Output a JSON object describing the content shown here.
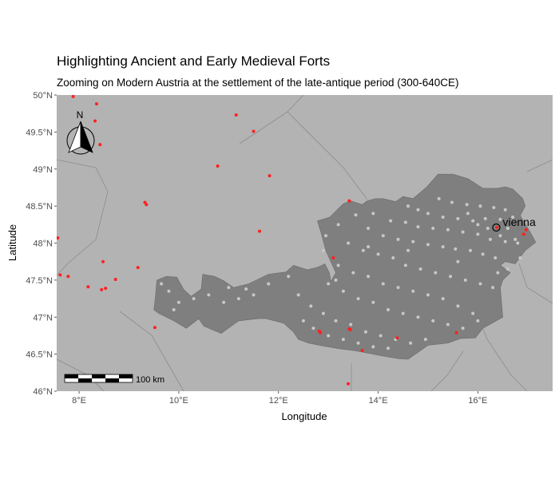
{
  "title": "Highlighting Ancient and Early Medieval Forts",
  "subtitle": "Zooming on Modern Austria at the settlement of the late-antique period (300-640CE)",
  "axes": {
    "xlabel": "Longitude",
    "ylabel": "Latitude",
    "xlim": [
      7.55,
      17.5
    ],
    "ylim": [
      46.0,
      50.0
    ],
    "x_ticks": [
      {
        "value": 8,
        "label": "8°E"
      },
      {
        "value": 10,
        "label": "10°E"
      },
      {
        "value": 12,
        "label": "12°E"
      },
      {
        "value": 14,
        "label": "14°E"
      },
      {
        "value": 16,
        "label": "16°E"
      }
    ],
    "y_ticks": [
      {
        "value": 46.0,
        "label": "46°N"
      },
      {
        "value": 46.5,
        "label": "46.5°N"
      },
      {
        "value": 47.0,
        "label": "47°N"
      },
      {
        "value": 47.5,
        "label": "47.5°N"
      },
      {
        "value": 48.0,
        "label": "48°N"
      },
      {
        "value": 48.5,
        "label": "48.5°N"
      },
      {
        "value": 49.0,
        "label": "49°N"
      },
      {
        "value": 49.5,
        "label": "49.5°N"
      },
      {
        "value": 50.0,
        "label": "50°N"
      }
    ]
  },
  "colors": {
    "background": "#b3b3b3",
    "austria_fill": "#7f7f7f",
    "border_line": "#8c8c8c",
    "fort_outside": "#ff2020",
    "fort_inside": "#c8c8c8"
  },
  "city": {
    "name": "vienna",
    "lon": 16.37,
    "lat": 48.21
  },
  "north_arrow": {
    "label": "N"
  },
  "scale_bar": {
    "label": "100 km"
  },
  "chart_data": {
    "type": "scatter",
    "title": "Highlighting Ancient and Early Medieval Forts",
    "xlabel": "Longitude",
    "ylabel": "Latitude",
    "austria_outline": [
      [
        9.53,
        47.27
      ],
      [
        9.56,
        47.5
      ],
      [
        9.75,
        47.55
      ],
      [
        9.96,
        47.54
      ],
      [
        10.1,
        47.37
      ],
      [
        10.25,
        47.28
      ],
      [
        10.45,
        47.38
      ],
      [
        10.48,
        47.58
      ],
      [
        10.72,
        47.55
      ],
      [
        10.9,
        47.49
      ],
      [
        11.1,
        47.4
      ],
      [
        11.4,
        47.45
      ],
      [
        11.8,
        47.58
      ],
      [
        12.15,
        47.61
      ],
      [
        12.3,
        47.7
      ],
      [
        12.58,
        47.64
      ],
      [
        12.77,
        47.67
      ],
      [
        12.93,
        47.72
      ],
      [
        13.02,
        47.6
      ],
      [
        13.05,
        47.48
      ],
      [
        13.15,
        47.6
      ],
      [
        12.95,
        47.9
      ],
      [
        12.85,
        48.15
      ],
      [
        12.78,
        48.3
      ],
      [
        13.03,
        48.35
      ],
      [
        13.3,
        48.53
      ],
      [
        13.45,
        48.57
      ],
      [
        13.68,
        48.52
      ],
      [
        13.78,
        48.57
      ],
      [
        13.95,
        48.6
      ],
      [
        14.1,
        48.6
      ],
      [
        14.35,
        48.56
      ],
      [
        14.5,
        48.63
      ],
      [
        14.7,
        48.6
      ],
      [
        14.98,
        48.76
      ],
      [
        15.2,
        48.93
      ],
      [
        15.5,
        48.93
      ],
      [
        15.8,
        48.87
      ],
      [
        16.1,
        48.74
      ],
      [
        16.38,
        48.74
      ],
      [
        16.55,
        48.76
      ],
      [
        16.7,
        48.73
      ],
      [
        16.9,
        48.6
      ],
      [
        16.95,
        48.5
      ],
      [
        16.85,
        48.37
      ],
      [
        17.05,
        48.15
      ],
      [
        17.16,
        48.01
      ],
      [
        16.95,
        47.9
      ],
      [
        16.75,
        47.72
      ],
      [
        16.55,
        47.75
      ],
      [
        16.45,
        47.7
      ],
      [
        16.65,
        47.6
      ],
      [
        16.5,
        47.5
      ],
      [
        16.45,
        47.4
      ],
      [
        16.5,
        47.0
      ],
      [
        16.1,
        46.85
      ],
      [
        15.95,
        46.72
      ],
      [
        15.65,
        46.71
      ],
      [
        15.4,
        46.65
      ],
      [
        15.0,
        46.62
      ],
      [
        14.6,
        46.43
      ],
      [
        14.4,
        46.44
      ],
      [
        14.05,
        46.48
      ],
      [
        13.75,
        46.52
      ],
      [
        13.5,
        46.55
      ],
      [
        13.25,
        46.57
      ],
      [
        12.9,
        46.61
      ],
      [
        12.6,
        46.65
      ],
      [
        12.4,
        46.7
      ],
      [
        12.3,
        46.8
      ],
      [
        12.1,
        46.92
      ],
      [
        11.75,
        46.98
      ],
      [
        11.6,
        46.98
      ],
      [
        11.2,
        46.95
      ],
      [
        10.85,
        46.78
      ],
      [
        10.5,
        46.88
      ],
      [
        10.4,
        46.98
      ],
      [
        10.15,
        46.85
      ],
      [
        9.9,
        46.95
      ],
      [
        9.6,
        47.05
      ],
      [
        9.5,
        47.1
      ]
    ],
    "series": [
      {
        "name": "",
        "color": "#ff2020",
        "points": [
          [
            7.88,
            49.98
          ],
          [
            8.35,
            49.88
          ],
          [
            8.0,
            49.56
          ],
          [
            8.32,
            49.65
          ],
          [
            8.42,
            49.33
          ],
          [
            11.15,
            49.73
          ],
          [
            11.5,
            49.51
          ],
          [
            10.78,
            49.04
          ],
          [
            11.82,
            48.91
          ],
          [
            9.32,
            48.55
          ],
          [
            9.35,
            48.52
          ],
          [
            11.62,
            48.16
          ],
          [
            7.57,
            48.07
          ],
          [
            7.62,
            47.57
          ],
          [
            7.78,
            47.55
          ],
          [
            8.48,
            47.75
          ],
          [
            8.18,
            47.41
          ],
          [
            8.45,
            47.37
          ],
          [
            8.53,
            47.39
          ],
          [
            8.73,
            47.51
          ],
          [
            9.18,
            47.67
          ],
          [
            9.52,
            46.86
          ],
          [
            13.42,
            48.57
          ],
          [
            13.1,
            47.8
          ],
          [
            12.82,
            46.81
          ],
          [
            12.84,
            46.79
          ],
          [
            13.42,
            46.84
          ],
          [
            13.44,
            46.83
          ],
          [
            13.68,
            46.55
          ],
          [
            14.38,
            46.72
          ],
          [
            15.57,
            46.79
          ],
          [
            16.38,
            48.21
          ],
          [
            16.92,
            48.12
          ],
          [
            16.97,
            48.18
          ],
          [
            13.4,
            46.1
          ]
        ]
      },
      {
        "name": "",
        "color": "#c8c8c8",
        "points": [
          [
            15.22,
            48.6
          ],
          [
            15.48,
            48.55
          ],
          [
            15.78,
            48.52
          ],
          [
            16.05,
            48.5
          ],
          [
            16.32,
            48.48
          ],
          [
            16.55,
            48.45
          ],
          [
            14.8,
            48.45
          ],
          [
            15.0,
            48.4
          ],
          [
            15.3,
            48.35
          ],
          [
            15.6,
            48.33
          ],
          [
            15.9,
            48.3
          ],
          [
            16.15,
            48.33
          ],
          [
            16.45,
            48.32
          ],
          [
            16.7,
            48.35
          ],
          [
            14.25,
            48.3
          ],
          [
            14.55,
            48.28
          ],
          [
            14.8,
            48.22
          ],
          [
            15.1,
            48.2
          ],
          [
            15.4,
            48.18
          ],
          [
            15.7,
            48.15
          ],
          [
            16.0,
            48.12
          ],
          [
            16.25,
            48.05
          ],
          [
            16.55,
            48.02
          ],
          [
            16.8,
            48.0
          ],
          [
            13.8,
            48.2
          ],
          [
            14.1,
            48.1
          ],
          [
            14.4,
            48.05
          ],
          [
            14.7,
            48.02
          ],
          [
            15.0,
            47.98
          ],
          [
            15.3,
            47.95
          ],
          [
            15.55,
            47.92
          ],
          [
            15.85,
            47.9
          ],
          [
            16.1,
            47.85
          ],
          [
            16.35,
            47.8
          ],
          [
            13.4,
            48.0
          ],
          [
            13.7,
            47.9
          ],
          [
            14.0,
            47.85
          ],
          [
            14.3,
            47.8
          ],
          [
            14.55,
            47.7
          ],
          [
            14.85,
            47.65
          ],
          [
            15.15,
            47.6
          ],
          [
            15.45,
            47.55
          ],
          [
            15.75,
            47.5
          ],
          [
            16.05,
            47.45
          ],
          [
            16.3,
            47.4
          ],
          [
            13.2,
            47.7
          ],
          [
            13.5,
            47.6
          ],
          [
            13.8,
            47.55
          ],
          [
            14.1,
            47.45
          ],
          [
            14.4,
            47.4
          ],
          [
            14.7,
            47.35
          ],
          [
            15.0,
            47.3
          ],
          [
            15.3,
            47.25
          ],
          [
            15.6,
            47.15
          ],
          [
            15.9,
            47.05
          ],
          [
            13.0,
            47.45
          ],
          [
            13.3,
            47.35
          ],
          [
            13.6,
            47.25
          ],
          [
            13.9,
            47.2
          ],
          [
            14.2,
            47.1
          ],
          [
            14.5,
            47.05
          ],
          [
            14.8,
            47.0
          ],
          [
            15.1,
            46.95
          ],
          [
            15.4,
            46.9
          ],
          [
            15.7,
            46.85
          ],
          [
            16.0,
            46.95
          ],
          [
            12.4,
            47.3
          ],
          [
            12.65,
            47.15
          ],
          [
            12.9,
            47.05
          ],
          [
            13.15,
            46.95
          ],
          [
            13.45,
            46.9
          ],
          [
            13.75,
            46.8
          ],
          [
            14.05,
            46.75
          ],
          [
            14.35,
            46.7
          ],
          [
            14.65,
            46.65
          ],
          [
            14.95,
            46.7
          ],
          [
            12.7,
            46.85
          ],
          [
            13.0,
            46.75
          ],
          [
            13.3,
            46.7
          ],
          [
            13.6,
            46.65
          ],
          [
            13.9,
            46.6
          ],
          [
            14.2,
            46.58
          ],
          [
            12.2,
            47.55
          ],
          [
            11.8,
            47.45
          ],
          [
            11.5,
            47.3
          ],
          [
            11.2,
            47.25
          ],
          [
            10.9,
            47.2
          ],
          [
            10.6,
            47.3
          ],
          [
            10.3,
            47.25
          ],
          [
            10.0,
            47.2
          ],
          [
            9.8,
            47.35
          ],
          [
            9.65,
            47.45
          ],
          [
            11.0,
            47.4
          ],
          [
            11.35,
            47.38
          ],
          [
            9.9,
            47.1
          ],
          [
            12.95,
            48.1
          ],
          [
            13.2,
            48.25
          ],
          [
            13.55,
            48.38
          ],
          [
            13.9,
            48.4
          ],
          [
            14.6,
            48.5
          ],
          [
            16.6,
            48.2
          ],
          [
            16.45,
            48.1
          ],
          [
            16.2,
            48.2
          ],
          [
            16.0,
            48.25
          ],
          [
            15.8,
            48.4
          ],
          [
            16.75,
            48.05
          ],
          [
            16.85,
            47.8
          ],
          [
            16.6,
            47.65
          ],
          [
            16.4,
            47.6
          ],
          [
            13.8,
            47.95
          ],
          [
            14.6,
            47.9
          ],
          [
            15.6,
            47.75
          ],
          [
            12.9,
            47.9
          ],
          [
            13.15,
            47.5
          ],
          [
            12.5,
            46.95
          ]
        ]
      }
    ]
  }
}
